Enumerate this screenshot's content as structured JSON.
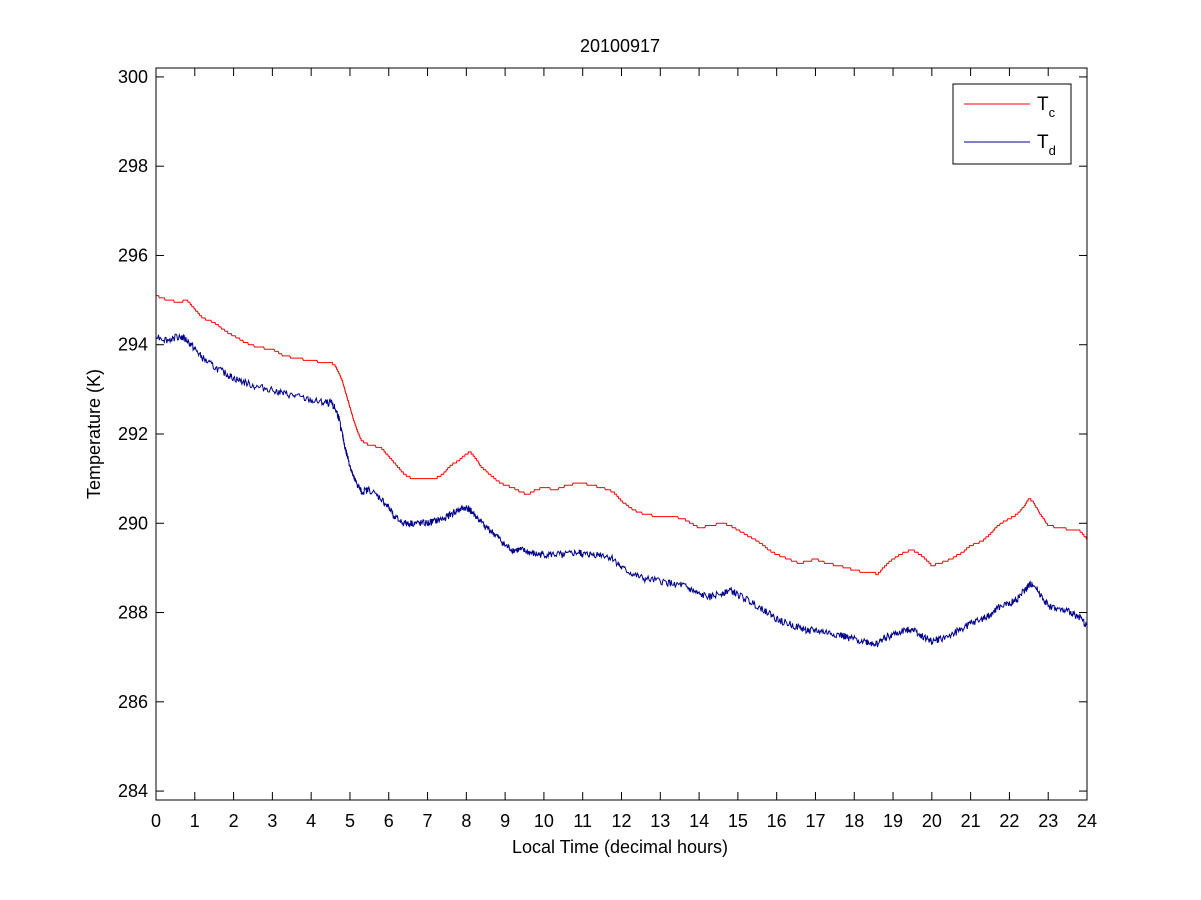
{
  "chart_data": {
    "type": "line",
    "title": "20100917",
    "xlabel": "Local Time (decimal hours)",
    "ylabel": "Temperature (K)",
    "xlim": [
      0,
      24
    ],
    "ylim": [
      283.8,
      300.2
    ],
    "xticks": [
      0,
      1,
      2,
      3,
      4,
      5,
      6,
      7,
      8,
      9,
      10,
      11,
      12,
      13,
      14,
      15,
      16,
      17,
      18,
      19,
      20,
      21,
      22,
      23,
      24
    ],
    "yticks": [
      284,
      286,
      288,
      290,
      292,
      294,
      296,
      298,
      300
    ],
    "grid": false,
    "legend_position": "top-right",
    "series": [
      {
        "name": "T",
        "name_subscript": "c",
        "color": "#ff0000",
        "x": [
          0,
          0.3,
          0.6,
          0.8,
          1,
          1.2,
          1.5,
          1.8,
          2,
          2.3,
          2.6,
          3,
          3.3,
          3.6,
          4,
          4.3,
          4.5,
          4.6,
          4.7,
          4.8,
          4.9,
          5,
          5.1,
          5.2,
          5.3,
          5.5,
          5.8,
          6,
          6.2,
          6.4,
          6.6,
          6.8,
          7,
          7.2,
          7.4,
          7.6,
          7.8,
          8,
          8.1,
          8.2,
          8.4,
          8.6,
          8.8,
          9,
          9.2,
          9.4,
          9.6,
          9.8,
          10,
          10.3,
          10.6,
          10.9,
          11,
          11.2,
          11.5,
          11.8,
          12,
          12.3,
          12.6,
          13,
          13.3,
          13.6,
          13.8,
          14,
          14.3,
          14.6,
          14.8,
          15,
          15.3,
          15.6,
          15.8,
          16,
          16.3,
          16.6,
          16.8,
          17,
          17.3,
          17.6,
          17.8,
          18,
          18.3,
          18.5,
          18.6,
          18.8,
          19,
          19.3,
          19.5,
          19.7,
          19.9,
          20,
          20.2,
          20.5,
          20.8,
          21,
          21.3,
          21.5,
          21.7,
          22,
          22.2,
          22.4,
          22.5,
          22.6,
          22.8,
          23,
          23.3,
          23.6,
          23.8,
          24
        ],
        "y": [
          295.1,
          295.0,
          294.95,
          295.0,
          294.8,
          294.6,
          294.5,
          294.3,
          294.2,
          294.05,
          293.95,
          293.9,
          293.75,
          293.7,
          293.65,
          293.6,
          293.6,
          293.55,
          293.4,
          293.2,
          292.9,
          292.6,
          292.3,
          292.05,
          291.85,
          291.75,
          291.7,
          291.5,
          291.3,
          291.1,
          291.0,
          291.0,
          291.0,
          291.0,
          291.1,
          291.3,
          291.4,
          291.55,
          291.6,
          291.5,
          291.25,
          291.1,
          290.95,
          290.85,
          290.8,
          290.7,
          290.65,
          290.75,
          290.8,
          290.75,
          290.85,
          290.9,
          290.9,
          290.85,
          290.8,
          290.7,
          290.5,
          290.3,
          290.2,
          290.15,
          290.15,
          290.1,
          290.0,
          289.9,
          289.95,
          290.0,
          289.95,
          289.85,
          289.7,
          289.55,
          289.4,
          289.3,
          289.2,
          289.1,
          289.15,
          289.2,
          289.1,
          289.05,
          289.0,
          288.95,
          288.9,
          288.9,
          288.85,
          289.05,
          289.2,
          289.35,
          289.4,
          289.3,
          289.15,
          289.05,
          289.1,
          289.2,
          289.35,
          289.5,
          289.6,
          289.75,
          289.95,
          290.1,
          290.2,
          290.4,
          290.55,
          290.5,
          290.2,
          289.95,
          289.9,
          289.85,
          289.85,
          289.65
        ]
      },
      {
        "name": "T",
        "name_subscript": "d",
        "color": "#00008b",
        "x": [
          0,
          0.3,
          0.6,
          0.8,
          1,
          1.2,
          1.5,
          1.8,
          2,
          2.3,
          2.6,
          3,
          3.3,
          3.6,
          4,
          4.3,
          4.5,
          4.6,
          4.7,
          4.8,
          4.9,
          5,
          5.1,
          5.2,
          5.3,
          5.5,
          5.8,
          6,
          6.2,
          6.4,
          6.6,
          6.8,
          7,
          7.2,
          7.4,
          7.6,
          7.8,
          8,
          8.1,
          8.2,
          8.4,
          8.6,
          8.8,
          9,
          9.2,
          9.4,
          9.6,
          9.8,
          10,
          10.3,
          10.6,
          10.9,
          11,
          11.2,
          11.5,
          11.8,
          12,
          12.3,
          12.6,
          13,
          13.3,
          13.6,
          13.8,
          14,
          14.3,
          14.6,
          14.8,
          15,
          15.3,
          15.6,
          15.8,
          16,
          16.3,
          16.6,
          16.8,
          17,
          17.3,
          17.6,
          17.8,
          18,
          18.3,
          18.5,
          18.6,
          18.8,
          19,
          19.3,
          19.5,
          19.7,
          19.9,
          20,
          20.2,
          20.5,
          20.8,
          21,
          21.3,
          21.5,
          21.7,
          22,
          22.2,
          22.4,
          22.5,
          22.6,
          22.8,
          23,
          23.3,
          23.6,
          23.8,
          24
        ],
        "y": [
          294.2,
          294.1,
          294.2,
          294.1,
          293.9,
          293.7,
          293.5,
          293.35,
          293.25,
          293.15,
          293.05,
          293.0,
          292.9,
          292.85,
          292.75,
          292.7,
          292.7,
          292.6,
          292.4,
          292.0,
          291.6,
          291.3,
          291.0,
          290.85,
          290.7,
          290.75,
          290.55,
          290.35,
          290.1,
          290.0,
          290.0,
          290.0,
          290.0,
          290.05,
          290.1,
          290.2,
          290.3,
          290.35,
          290.3,
          290.2,
          290.0,
          289.85,
          289.7,
          289.5,
          289.4,
          289.4,
          289.35,
          289.3,
          289.3,
          289.3,
          289.3,
          289.35,
          289.3,
          289.3,
          289.3,
          289.2,
          289.0,
          288.85,
          288.75,
          288.7,
          288.65,
          288.6,
          288.5,
          288.4,
          288.35,
          288.45,
          288.5,
          288.4,
          288.25,
          288.1,
          288.0,
          287.85,
          287.75,
          287.65,
          287.6,
          287.6,
          287.55,
          287.5,
          287.45,
          287.4,
          287.35,
          287.3,
          287.3,
          287.45,
          287.5,
          287.6,
          287.65,
          287.5,
          287.4,
          287.35,
          287.4,
          287.5,
          287.65,
          287.75,
          287.85,
          287.95,
          288.1,
          288.2,
          288.3,
          288.5,
          288.6,
          288.65,
          288.4,
          288.15,
          288.05,
          288.0,
          287.9,
          287.7
        ]
      }
    ]
  }
}
